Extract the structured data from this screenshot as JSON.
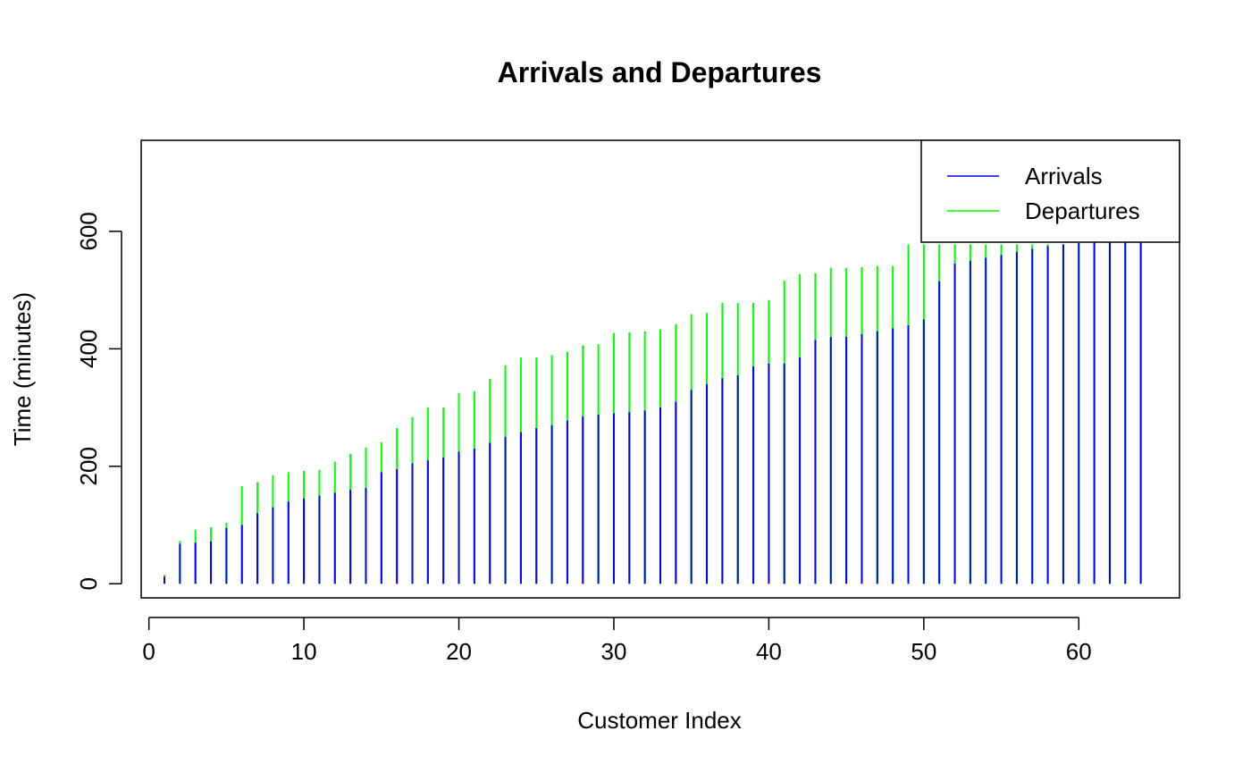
{
  "chart_data": {
    "type": "line",
    "title": "Arrivals and Departures",
    "xlabel": "Customer Index",
    "ylabel": "Time (minutes)",
    "xlim": [
      -0.5,
      66.5
    ],
    "ylim": [
      -24,
      755
    ],
    "x_ticks": [
      0,
      10,
      20,
      30,
      40,
      50,
      60
    ],
    "y_ticks": [
      0,
      200,
      400,
      600
    ],
    "grid": false,
    "legend_position": "top-right",
    "x": [
      1,
      2,
      3,
      4,
      5,
      6,
      7,
      8,
      9,
      10,
      11,
      12,
      13,
      14,
      15,
      16,
      17,
      18,
      19,
      20,
      21,
      22,
      23,
      24,
      25,
      26,
      27,
      28,
      29,
      30,
      31,
      32,
      33,
      34,
      35,
      36,
      37,
      38,
      39,
      40,
      41,
      42,
      43,
      44,
      45,
      46,
      47,
      48,
      49,
      50,
      51,
      52,
      53,
      54,
      55,
      56,
      57,
      58,
      59,
      60,
      61,
      62,
      63,
      64
    ],
    "series": [
      {
        "name": "Arrivals",
        "color": "#0000FF",
        "values": [
          12,
          68,
          70,
          72,
          95,
          100,
          120,
          130,
          140,
          145,
          150,
          155,
          160,
          163,
          190,
          195,
          205,
          210,
          215,
          225,
          230,
          240,
          250,
          258,
          265,
          270,
          278,
          285,
          288,
          290,
          292,
          295,
          300,
          310,
          330,
          340,
          350,
          355,
          370,
          375,
          375,
          385,
          415,
          420,
          420,
          425,
          430,
          435,
          440,
          450,
          515,
          545,
          550,
          555,
          560,
          565,
          570,
          575,
          578,
          580,
          582,
          585,
          588,
          590
        ]
      },
      {
        "name": "Departures",
        "color": "#00FF00",
        "values": [
          15,
          73,
          92,
          96,
          104,
          166,
          173,
          185,
          190,
          192,
          194,
          208,
          221,
          232,
          241,
          265,
          284,
          300,
          300,
          325,
          328,
          349,
          372,
          385,
          385,
          389,
          395,
          406,
          408,
          427,
          428,
          430,
          433,
          442,
          459,
          461,
          478,
          478,
          478,
          483,
          516,
          527,
          529,
          538,
          538,
          539,
          541,
          541,
          578,
          578,
          578,
          578,
          578,
          578,
          578,
          578,
          578,
          578,
          578,
          578,
          578,
          578,
          578,
          578
        ]
      }
    ]
  }
}
